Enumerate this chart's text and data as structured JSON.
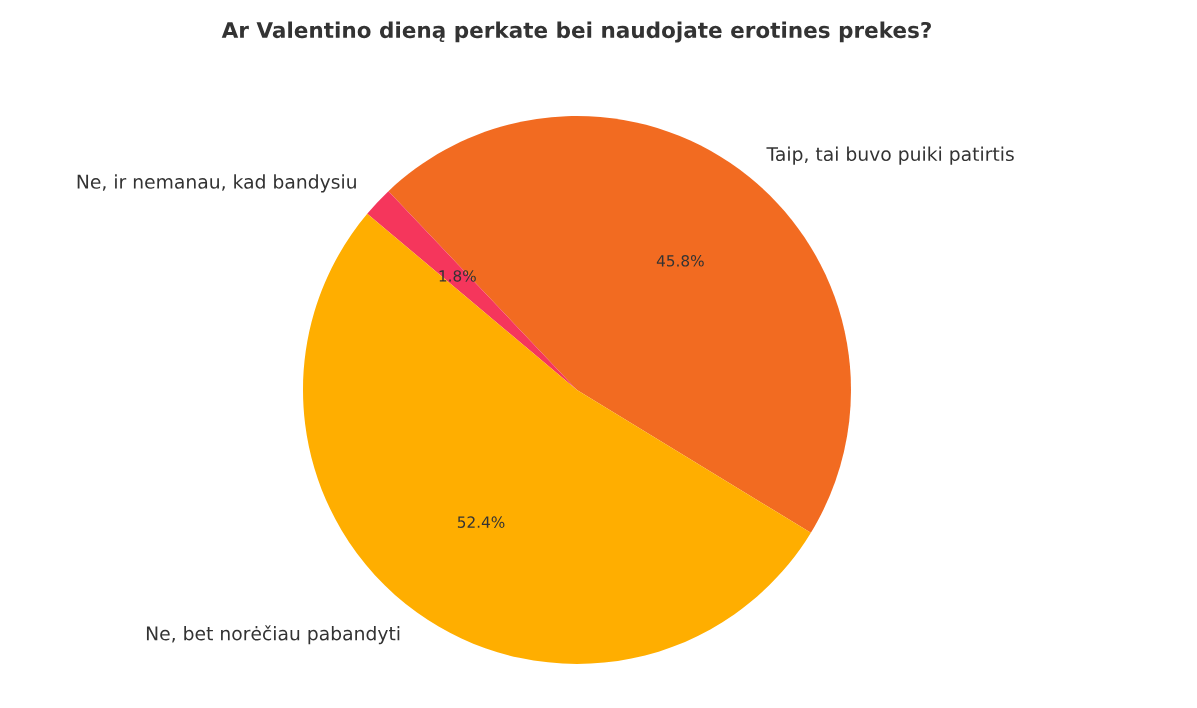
{
  "chart_data": {
    "type": "pie",
    "title": "Ar Valentino dieną perkate bei naudojate erotines prekes?",
    "categories": [
      "Taip, tai buvo puiki patirtis",
      "Ne, ir nemanau, kad bandysiu",
      "Ne, bet norėčiau pabandyti"
    ],
    "values": [
      45.8,
      1.8,
      52.4
    ],
    "colors": [
      "#f26b21",
      "#f5365c",
      "#ffae00"
    ],
    "value_labels": [
      "45.8%",
      "1.8%",
      "52.4%"
    ]
  }
}
